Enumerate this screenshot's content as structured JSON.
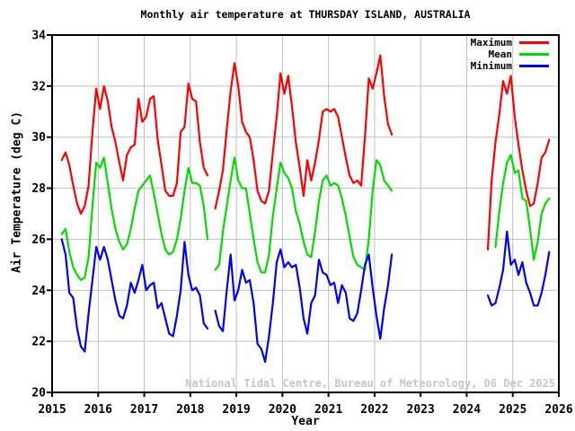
{
  "watermark": "National Tidal Centre, Bureau of Meteorology, 06 Dec 2025",
  "colors": {
    "background": "#ffffff",
    "frame": "#000000",
    "grid": "#c0c0c0",
    "watermark_text": "#c6c6c6",
    "maximum": "#ff0000",
    "mean": "#00dd00",
    "minimum": "#0000ff"
  },
  "chart_data": {
    "type": "line",
    "title": "Monthly air temperature at THURSDAY ISLAND, AUSTRALIA",
    "xlabel": "Year",
    "ylabel": "Air Temperature (deg C)",
    "xlim": [
      2015,
      2026
    ],
    "ylim": [
      20,
      34
    ],
    "x_ticks": [
      2015,
      2016,
      2017,
      2018,
      2019,
      2020,
      2021,
      2022,
      2023,
      2024,
      2025,
      2026
    ],
    "y_ticks": [
      20,
      22,
      24,
      26,
      28,
      30,
      32,
      34
    ],
    "grid": true,
    "legend_position": "top-right",
    "start_month": "2015-01",
    "series": [
      {
        "name": "Maximum",
        "color": "#ff0000",
        "monthly_values": [
          null,
          null,
          29.1,
          29.4,
          28.9,
          28.1,
          27.4,
          27.0,
          27.3,
          28.1,
          30.2,
          31.9,
          31.1,
          32.0,
          31.4,
          30.4,
          29.8,
          29.0,
          28.3,
          29.3,
          29.6,
          29.7,
          31.5,
          30.6,
          30.8,
          31.5,
          31.6,
          29.9,
          28.9,
          27.9,
          27.7,
          27.7,
          28.2,
          30.2,
          30.4,
          32.1,
          31.5,
          31.4,
          29.8,
          28.8,
          28.5,
          null,
          27.2,
          27.9,
          28.7,
          30.3,
          31.8,
          32.9,
          32.0,
          30.6,
          30.2,
          30.0,
          29.1,
          27.9,
          27.5,
          27.4,
          27.9,
          29.4,
          30.8,
          32.5,
          31.7,
          32.4,
          31.2,
          29.8,
          28.8,
          27.7,
          29.1,
          28.3,
          29.0,
          29.9,
          31.0,
          31.1,
          31.0,
          31.1,
          30.8,
          30.0,
          29.2,
          28.5,
          28.2,
          28.3,
          28.1,
          30.0,
          32.3,
          31.9,
          32.5,
          33.2,
          31.6,
          30.5,
          30.1,
          null,
          null,
          null,
          null,
          null,
          null,
          null,
          null,
          null,
          null,
          null,
          null,
          null,
          null,
          null,
          null,
          null,
          null,
          null,
          null,
          null,
          null,
          null,
          null,
          25.6,
          28.3,
          29.8,
          30.9,
          32.2,
          31.7,
          32.4,
          30.8,
          29.7,
          28.7,
          27.9,
          27.3,
          27.4,
          28.2,
          29.2,
          29.4,
          29.9,
          null,
          null
        ]
      },
      {
        "name": "Mean",
        "color": "#00dd00",
        "monthly_values": [
          null,
          null,
          26.2,
          26.4,
          25.5,
          24.9,
          24.6,
          24.4,
          24.5,
          25.3,
          27.3,
          29.0,
          28.8,
          29.2,
          28.2,
          27.2,
          26.4,
          25.9,
          25.6,
          25.8,
          26.4,
          27.2,
          27.9,
          28.1,
          28.3,
          28.5,
          27.8,
          27.0,
          26.2,
          25.6,
          25.4,
          25.5,
          26.0,
          26.8,
          27.9,
          28.8,
          28.2,
          28.2,
          28.1,
          27.3,
          26.0,
          null,
          24.8,
          25.0,
          26.3,
          27.3,
          28.3,
          29.2,
          28.3,
          28.0,
          28.0,
          27.0,
          26.0,
          25.1,
          24.7,
          24.7,
          25.4,
          26.9,
          28.0,
          29.0,
          28.6,
          28.4,
          28.0,
          27.1,
          26.6,
          25.9,
          25.4,
          25.3,
          26.3,
          27.5,
          28.3,
          28.5,
          28.1,
          28.2,
          28.1,
          27.6,
          26.9,
          26.1,
          25.3,
          25.0,
          24.9,
          24.8,
          26.0,
          27.9,
          29.1,
          28.9,
          28.3,
          28.1,
          27.9,
          null,
          null,
          null,
          null,
          null,
          null,
          null,
          null,
          null,
          null,
          null,
          null,
          null,
          null,
          null,
          null,
          null,
          null,
          null,
          null,
          null,
          null,
          null,
          null,
          null,
          null,
          25.7,
          27.1,
          28.2,
          29.0,
          29.3,
          28.6,
          28.7,
          27.6,
          27.5,
          26.4,
          25.2,
          25.9,
          27.0,
          27.4,
          27.6,
          null,
          null
        ]
      },
      {
        "name": "Minimum",
        "color": "#0000ff",
        "monthly_values": [
          null,
          null,
          26.0,
          25.4,
          23.9,
          23.7,
          22.5,
          21.8,
          21.6,
          23.1,
          24.4,
          25.7,
          25.2,
          25.7,
          25.2,
          24.4,
          23.6,
          23.0,
          22.9,
          23.4,
          24.3,
          23.9,
          24.4,
          25.0,
          24.0,
          24.2,
          24.3,
          23.3,
          23.5,
          22.9,
          22.3,
          22.2,
          23.0,
          24.0,
          25.9,
          24.6,
          24.0,
          24.1,
          23.8,
          22.7,
          22.5,
          null,
          23.2,
          22.6,
          22.4,
          24.0,
          25.4,
          23.6,
          24.0,
          24.8,
          24.3,
          24.4,
          23.5,
          21.9,
          21.7,
          21.2,
          22.2,
          23.5,
          25.1,
          25.6,
          24.9,
          25.1,
          24.9,
          25.0,
          24.1,
          22.9,
          22.3,
          23.5,
          23.8,
          25.2,
          24.7,
          24.6,
          24.2,
          24.3,
          23.5,
          24.2,
          23.9,
          22.9,
          22.8,
          23.1,
          24.0,
          25.0,
          25.4,
          24.1,
          23.0,
          22.1,
          23.3,
          24.2,
          25.4,
          null,
          null,
          null,
          null,
          null,
          null,
          null,
          null,
          null,
          null,
          null,
          null,
          null,
          null,
          null,
          null,
          null,
          null,
          null,
          null,
          null,
          null,
          null,
          null,
          23.8,
          23.4,
          23.5,
          24.1,
          24.8,
          26.3,
          25.0,
          25.2,
          24.6,
          25.1,
          24.3,
          23.9,
          23.4,
          23.4,
          23.9,
          24.6,
          25.5,
          null,
          null
        ]
      }
    ]
  }
}
